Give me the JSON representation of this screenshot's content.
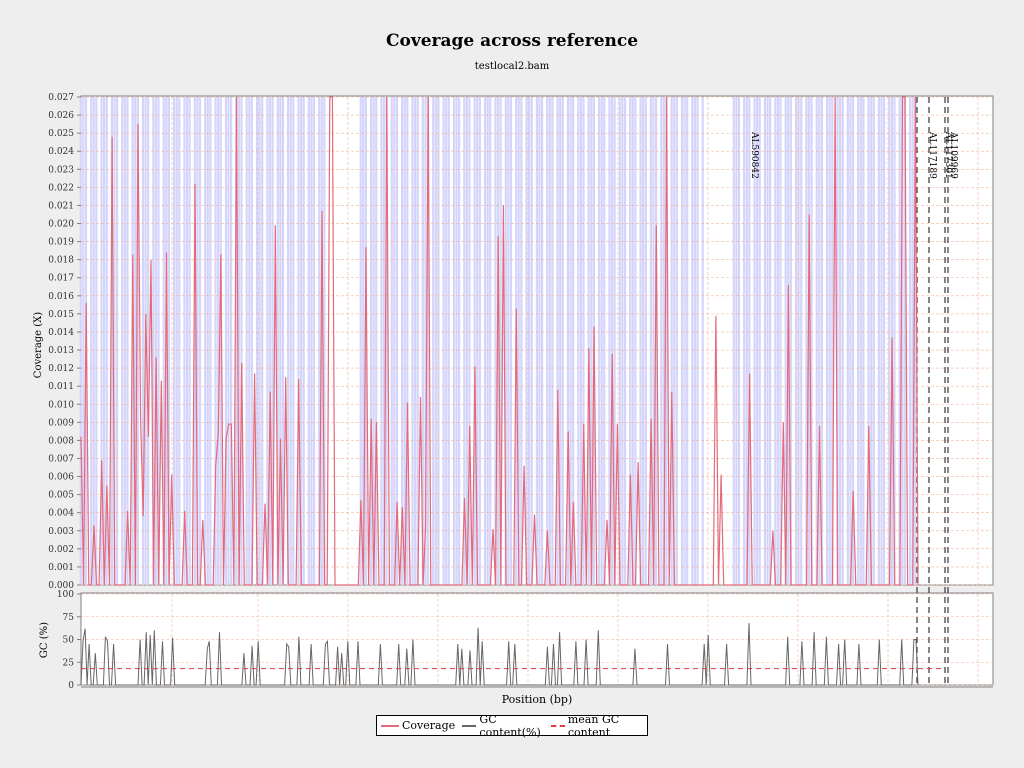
{
  "title": "Coverage across reference",
  "subtitle": "testlocal2.bam",
  "legend": {
    "coverage": "Coverage",
    "gc": "GC content(%)",
    "mean_gc": "mean GC content"
  },
  "colors": {
    "coverage_line": "#e26a7a",
    "contig_band": "#d5d5fb",
    "gc_line": "#666666",
    "mean_gc_line": "#e23b3b",
    "grid": "#f0b49a",
    "contig_marker": "#444444"
  },
  "chart_data": [
    {
      "type": "area",
      "name": "coverage-panel",
      "ylabel": "Coverage (X)",
      "ylim": [
        0,
        0.027
      ],
      "y_ticks": [
        "0.000",
        "0.001",
        "0.002",
        "0.003",
        "0.004",
        "0.005",
        "0.006",
        "0.007",
        "0.008",
        "0.009",
        "0.010",
        "0.011",
        "0.012",
        "0.013",
        "0.014",
        "0.015",
        "0.016",
        "0.017",
        "0.018",
        "0.019",
        "0.020",
        "0.021",
        "0.022",
        "0.023",
        "0.024",
        "0.025",
        "0.026",
        "0.027"
      ],
      "grid": true,
      "contig_labels": [
        "AL590842",
        "AL117189",
        "AL117301",
        "AL109969"
      ],
      "series": [
        {
          "name": "Coverage",
          "values": [
            0.0082,
            0.0,
            0.0156,
            0.0,
            0.0,
            0.0033,
            0.0,
            0.0,
            0.0069,
            0.0,
            0.0055,
            0.0,
            0.0248,
            0.0,
            0.0,
            0.0,
            0.0,
            0.0,
            0.0041,
            0.0,
            0.0183,
            0.0,
            0.0255,
            0.0092,
            0.0038,
            0.015,
            0.0082,
            0.018,
            0.0,
            0.0126,
            0.0,
            0.0113,
            0.0,
            0.0184,
            0.0,
            0.0061,
            0.0,
            0.0,
            0.0,
            0.0,
            0.0041,
            0.0,
            0.0,
            0.0,
            0.0222,
            0.0,
            0.0,
            0.0036,
            0.0,
            0.0,
            0.0,
            0.0,
            0.0066,
            0.0084,
            0.0183,
            0.0,
            0.0081,
            0.0089,
            0.0089,
            0.0,
            0.027,
            0.0,
            0.0123,
            0.0,
            0.0,
            0.0,
            0.0,
            0.0117,
            0.0,
            0.0,
            0.0,
            0.0045,
            0.0,
            0.0107,
            0.0,
            0.0199,
            0.0,
            0.0081,
            0.0,
            0.0115,
            0.0,
            0.0,
            0.0,
            0.0,
            0.0114,
            0.0,
            0.0,
            0.0,
            0.0,
            0.0,
            0.0,
            0.0,
            0.0,
            0.0207,
            0.0,
            0.0,
            0.027,
            0.027,
            0.0,
            0.0,
            0.0,
            0.0,
            0.0,
            0.0,
            0.0,
            0.0,
            0.0,
            0.0,
            0.0047,
            0.0,
            0.0187,
            0.0,
            0.0092,
            0.0,
            0.009,
            0.0,
            0.0,
            0.0,
            0.027,
            0.0,
            0.0,
            0.0,
            0.0046,
            0.0,
            0.0043,
            0.0,
            0.0101,
            0.0,
            0.0,
            0.0,
            0.0,
            0.0104,
            0.0,
            0.0033,
            0.027,
            0.0,
            0.0,
            0.0,
            0.0,
            0.0,
            0.0,
            0.0,
            0.0,
            0.0,
            0.0,
            0.0,
            0.0,
            0.0,
            0.0048,
            0.0,
            0.0088,
            0.0,
            0.0121,
            0.0,
            0.0,
            0.0,
            0.0,
            0.0,
            0.0,
            0.0031,
            0.0,
            0.0193,
            0.0,
            0.021,
            0.0,
            0.0,
            0.0,
            0.0,
            0.0153,
            0.0,
            0.0,
            0.0066,
            0.0,
            0.0,
            0.0,
            0.0039,
            0.0,
            0.0,
            0.0,
            0.0,
            0.003,
            0.0,
            0.0,
            0.0,
            0.0108,
            0.0,
            0.0,
            0.0,
            0.0085,
            0.0,
            0.0046,
            0.0,
            0.0,
            0.0,
            0.0089,
            0.0,
            0.0131,
            0.0,
            0.0143,
            0.0,
            0.0,
            0.0,
            0.0,
            0.0036,
            0.0,
            0.0128,
            0.0,
            0.0089,
            0.0,
            0.0,
            0.0,
            0.0,
            0.0061,
            0.0,
            0.0,
            0.0068,
            0.0,
            0.0,
            0.0,
            0.0,
            0.0092,
            0.0,
            0.0199,
            0.0,
            0.0,
            0.0,
            0.027,
            0.0,
            0.0107,
            0.0,
            0.0,
            0.0,
            0.0,
            0.0,
            0.0,
            0.0,
            0.0,
            0.0,
            0.0,
            0.0,
            0.0,
            0.0,
            0.0,
            0.0,
            0.0,
            0.0149,
            0.0,
            0.0061,
            0.0,
            0.0,
            0.0,
            0.0,
            0.0,
            0.0,
            0.0,
            0.0,
            0.0,
            0.0,
            0.0117,
            0.0,
            0.0,
            0.0,
            0.0,
            0.0,
            0.0,
            0.0,
            0.0,
            0.003,
            0.0,
            0.0,
            0.0,
            0.009,
            0.0,
            0.0166,
            0.0,
            0.0,
            0.0,
            0.0,
            0.0,
            0.0,
            0.0,
            0.0205,
            0.0,
            0.0,
            0.0,
            0.0088,
            0.0,
            0.0,
            0.0,
            0.0,
            0.0,
            0.027,
            0.0,
            0.0,
            0.0,
            0.0,
            0.0,
            0.0,
            0.0052,
            0.0,
            0.0,
            0.0,
            0.0,
            0.0,
            0.0088,
            0.0,
            0.0,
            0.0,
            0.0,
            0.0,
            0.0,
            0.0,
            0.0,
            0.0137,
            0.0,
            0.0,
            0.0,
            0.027,
            0.027,
            0.0,
            0.0,
            0.0,
            0.027,
            0.0
          ]
        }
      ]
    },
    {
      "type": "line",
      "name": "gc-panel",
      "ylabel": "GC (%)",
      "xlabel": "Position (bp)",
      "ylim": [
        0,
        100
      ],
      "y_ticks": [
        "0",
        "25",
        "50",
        "75",
        "100"
      ],
      "grid": true,
      "mean_gc": 18,
      "series": [
        {
          "name": "GC content(%)",
          "values": [
            0,
            48,
            62,
            0,
            45,
            0,
            0,
            35,
            0,
            0,
            0,
            0,
            53,
            48,
            0,
            0,
            45,
            0,
            0,
            0,
            0,
            0,
            0,
            0,
            0,
            0,
            0,
            0,
            0,
            50,
            0,
            0,
            58,
            0,
            55,
            0,
            60,
            0,
            0,
            0,
            48,
            0,
            0,
            0,
            0,
            52,
            0,
            0,
            0,
            0,
            0,
            0,
            0,
            0,
            0,
            0,
            0,
            0,
            0,
            0,
            0,
            0,
            40,
            48,
            0,
            0,
            0,
            0,
            58,
            0,
            0,
            0,
            0,
            0,
            0,
            0,
            0,
            0,
            0,
            0,
            35,
            0,
            0,
            0,
            43,
            0,
            0,
            48,
            0,
            0,
            0,
            0,
            0,
            0,
            0,
            0,
            0,
            0,
            0,
            0,
            0,
            45,
            42,
            0,
            0,
            0,
            0,
            53,
            0,
            0,
            0,
            0,
            0,
            45,
            0,
            0,
            0,
            0,
            0,
            0,
            45,
            48,
            0,
            0,
            0,
            0,
            42,
            0,
            35,
            0,
            0,
            48,
            0,
            0,
            0,
            0,
            48,
            0,
            0,
            0,
            0,
            0,
            0,
            0,
            0,
            0,
            0,
            45,
            0,
            0,
            0,
            0,
            0,
            0,
            0,
            0,
            45,
            0,
            0,
            0,
            40,
            0,
            0,
            50,
            0,
            0,
            0,
            0,
            0,
            0,
            0,
            0,
            0,
            0,
            0,
            0,
            0,
            0,
            0,
            0,
            0,
            0,
            0,
            0,
            0,
            45,
            0,
            40,
            0,
            0,
            0,
            38,
            0,
            0,
            0,
            63,
            0,
            48,
            0,
            0,
            0,
            0,
            0,
            0,
            0,
            0,
            0,
            0,
            0,
            0,
            48,
            0,
            0,
            45,
            0,
            0,
            0,
            0,
            0,
            0,
            0,
            0,
            0,
            0,
            0,
            0,
            0,
            0,
            0,
            42,
            0,
            0,
            45,
            0,
            0,
            58,
            0,
            0,
            0,
            0,
            0,
            0,
            0,
            48,
            0,
            0,
            0,
            0,
            50,
            0,
            0,
            0,
            0,
            0,
            60,
            0,
            0,
            0,
            0,
            0,
            0,
            0,
            0,
            0,
            0,
            0,
            0,
            0,
            0,
            0,
            0,
            0,
            40,
            0,
            0,
            0,
            0,
            0,
            0,
            0,
            0,
            0,
            0,
            0,
            0,
            0,
            0,
            0,
            45,
            0,
            0,
            0,
            0,
            0,
            0,
            0,
            0,
            0,
            0,
            0,
            0,
            0,
            0,
            0,
            0,
            0,
            45,
            0,
            55,
            0,
            0,
            0,
            0,
            0,
            0,
            0,
            0,
            45,
            0,
            0,
            0,
            0,
            0,
            0,
            0,
            0,
            0,
            0,
            68,
            0,
            0,
            0,
            0,
            0,
            0,
            0,
            0,
            0,
            0,
            0,
            0,
            0,
            0,
            0,
            0,
            0,
            0,
            53,
            0,
            0,
            0,
            0,
            0,
            0,
            48,
            0,
            0,
            0,
            0,
            0,
            58,
            0,
            0,
            0,
            0,
            0,
            53,
            0,
            0,
            0,
            0,
            0,
            45,
            0,
            0,
            50,
            0,
            0,
            0,
            0,
            0,
            0,
            45,
            0,
            0,
            0,
            0,
            0,
            0,
            0,
            0,
            0,
            50,
            0,
            0,
            0,
            0,
            0,
            0,
            0,
            0,
            0,
            0,
            50,
            0,
            0,
            0,
            0,
            0,
            50,
            50,
            0
          ]
        },
        {
          "name": "mean GC content",
          "values": [
            18
          ]
        }
      ]
    }
  ]
}
